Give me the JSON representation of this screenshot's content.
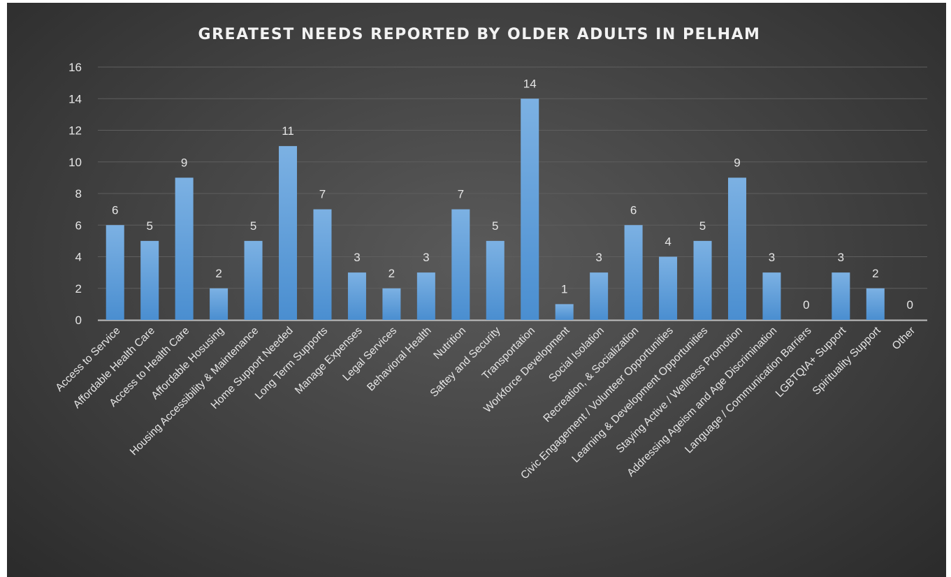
{
  "chart_data": {
    "type": "bar",
    "title": "GREATEST NEEDS REPORTED BY OLDER ADULTS IN PELHAM",
    "xlabel": "",
    "ylabel": "",
    "ylim": [
      0,
      16
    ],
    "yticks": [
      0,
      2,
      4,
      6,
      8,
      10,
      12,
      14,
      16
    ],
    "grid": true,
    "legend": "none",
    "colors": {
      "bar": "#5b9bd5",
      "bar_light": "#7cb1e3",
      "grid": "#5e5e5e",
      "axis": "#bfbfbf"
    },
    "categories": [
      "Access to Service",
      "Affordable Health Care",
      "Access to Health Care",
      "Affordable Hosusing",
      "Housing Accessibility & Maintenance",
      "Home Support Needed",
      "Long Term Supports",
      "Manage Expenses",
      "Legal Services",
      "Behavioral Health",
      "Nutrition",
      "Saftey and Security",
      "Transportation",
      "Workforce Development",
      "Social Isolation",
      "Recreation, & Socialization",
      "Civic Engagement / Volunteer Opportunities",
      "Learning & Development Opportunities",
      "Staying Active / Wellness Promotion",
      "Addressing Ageism and Age Discrimination",
      "Language / Communication Barriers",
      "LGBTQIA+ Support",
      "Spirituality Support",
      "Other"
    ],
    "values": [
      6,
      5,
      9,
      2,
      5,
      11,
      7,
      3,
      2,
      3,
      7,
      5,
      14,
      1,
      3,
      6,
      4,
      5,
      9,
      3,
      0,
      3,
      2,
      0
    ]
  }
}
